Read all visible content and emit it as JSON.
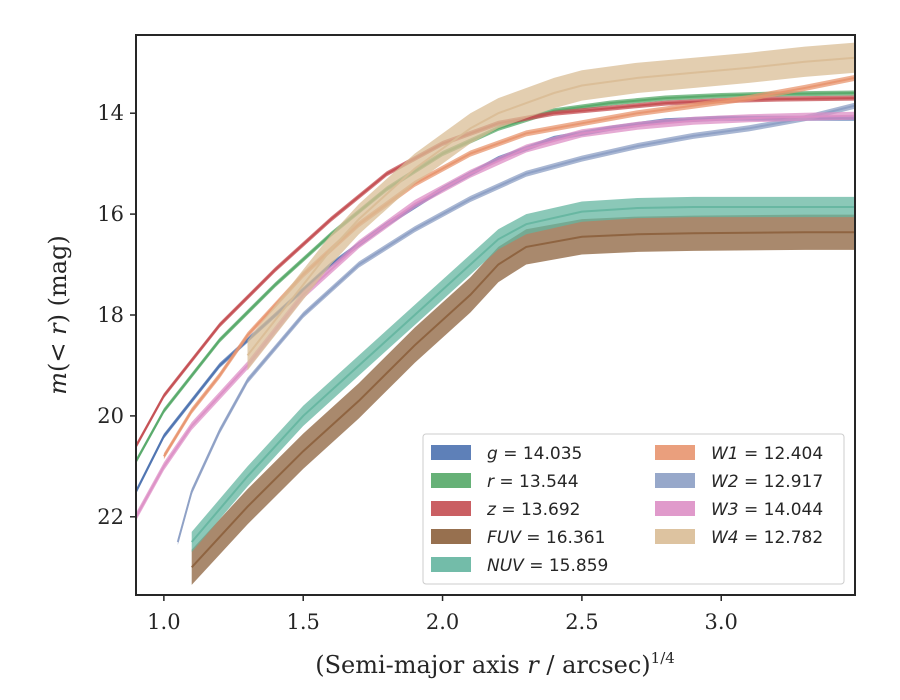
{
  "chart_data": {
    "type": "line",
    "title": "",
    "xlabel": "(Semi-major axis r / arcsec)^{1/4}",
    "xlabel_parts": [
      "(Semi-major axis ",
      "r",
      " / arcsec)",
      "1/4"
    ],
    "ylabel": "m(< r) (mag)",
    "ylabel_parts": [
      "m",
      "(< ",
      "r",
      ") (mag)"
    ],
    "xlim": [
      0.9,
      3.48
    ],
    "ylim": [
      23.55,
      12.45
    ],
    "y_inverted": true,
    "xticks": [
      1.0,
      1.5,
      2.0,
      2.5,
      3.0
    ],
    "xtick_labels": [
      "1.0",
      "1.5",
      "2.0",
      "2.5",
      "3.0"
    ],
    "yticks": [
      14,
      16,
      18,
      20,
      22
    ],
    "ytick_labels": [
      "14",
      "16",
      "18",
      "20",
      "22"
    ],
    "grid": false,
    "legend_position": "lower-right",
    "series": [
      {
        "name": "g",
        "label_value": "14.035",
        "color": "#4c72b0",
        "x": [
          0.9,
          1.0,
          1.2,
          1.4,
          1.6,
          1.8,
          2.0,
          2.2,
          2.4,
          2.6,
          2.8,
          3.0,
          3.2,
          3.48
        ],
        "y": [
          21.5,
          20.4,
          19.0,
          18.0,
          17.0,
          16.2,
          15.5,
          14.9,
          14.5,
          14.3,
          14.15,
          14.1,
          14.1,
          14.1
        ],
        "band": 0.05
      },
      {
        "name": "r",
        "label_value": "13.544",
        "color": "#55a868",
        "x": [
          0.9,
          1.0,
          1.2,
          1.4,
          1.6,
          1.8,
          2.0,
          2.2,
          2.4,
          2.6,
          2.8,
          3.0,
          3.2,
          3.48
        ],
        "y": [
          20.9,
          19.9,
          18.5,
          17.4,
          16.4,
          15.5,
          14.8,
          14.3,
          13.95,
          13.8,
          13.7,
          13.65,
          13.62,
          13.6
        ],
        "band": 0.05
      },
      {
        "name": "z",
        "label_value": "13.692",
        "color": "#c44e52",
        "x": [
          0.9,
          1.0,
          1.2,
          1.4,
          1.6,
          1.8,
          2.0,
          2.2,
          2.4,
          2.6,
          2.8,
          3.0,
          3.2,
          3.48
        ],
        "y": [
          20.6,
          19.6,
          18.2,
          17.1,
          16.1,
          15.2,
          14.6,
          14.2,
          14.0,
          13.9,
          13.8,
          13.75,
          13.72,
          13.7
        ],
        "band": 0.05
      },
      {
        "name": "FUV",
        "label_value": "16.361",
        "color": "#8c613c",
        "x": [
          1.1,
          1.3,
          1.5,
          1.7,
          1.9,
          2.1,
          2.2,
          2.3,
          2.5,
          2.7,
          2.9,
          3.1,
          3.3,
          3.48
        ],
        "y": [
          23.0,
          21.8,
          20.7,
          19.7,
          18.6,
          17.6,
          17.0,
          16.65,
          16.45,
          16.4,
          16.38,
          16.37,
          16.36,
          16.36
        ],
        "band": 0.35
      },
      {
        "name": "NUV",
        "label_value": "15.859",
        "color": "#64b5a0",
        "x": [
          1.1,
          1.3,
          1.5,
          1.7,
          1.9,
          2.1,
          2.2,
          2.3,
          2.5,
          2.7,
          2.9,
          3.1,
          3.3,
          3.48
        ],
        "y": [
          22.5,
          21.2,
          20.0,
          19.0,
          18.0,
          17.0,
          16.5,
          16.2,
          15.95,
          15.88,
          15.86,
          15.86,
          15.86,
          15.86
        ],
        "band": 0.2
      },
      {
        "name": "W1",
        "label_value": "12.404",
        "color": "#e8956f",
        "x": [
          1.0,
          1.1,
          1.2,
          1.3,
          1.5,
          1.7,
          1.9,
          2.1,
          2.3,
          2.5,
          2.7,
          2.9,
          3.1,
          3.3,
          3.48
        ],
        "y": [
          20.8,
          19.9,
          19.2,
          18.4,
          17.2,
          16.2,
          15.4,
          14.8,
          14.4,
          14.2,
          14.0,
          13.85,
          13.7,
          13.5,
          13.3
        ],
        "band": 0.06
      },
      {
        "name": "W2",
        "label_value": "12.917",
        "color": "#8c9fc4",
        "x": [
          1.05,
          1.1,
          1.2,
          1.3,
          1.5,
          1.7,
          1.9,
          2.1,
          2.3,
          2.5,
          2.7,
          2.9,
          3.1,
          3.3,
          3.48
        ],
        "y": [
          22.5,
          21.5,
          20.3,
          19.3,
          18.0,
          17.0,
          16.3,
          15.7,
          15.2,
          14.9,
          14.65,
          14.45,
          14.3,
          14.1,
          13.85
        ],
        "band": 0.06
      },
      {
        "name": "W3",
        "label_value": "14.044",
        "color": "#dd8fc5",
        "x": [
          0.9,
          1.0,
          1.1,
          1.2,
          1.3,
          1.4,
          1.5,
          1.7,
          1.9,
          2.1,
          2.3,
          2.5,
          2.7,
          2.9,
          3.1,
          3.3,
          3.48
        ],
        "y": [
          22.0,
          21.0,
          20.2,
          19.6,
          19.0,
          18.3,
          17.6,
          16.6,
          15.8,
          15.2,
          14.7,
          14.4,
          14.25,
          14.15,
          14.1,
          14.07,
          14.05
        ],
        "band": 0.08
      },
      {
        "name": "W4",
        "label_value": "12.782",
        "color": "#d9bd96",
        "x": [
          1.3,
          1.4,
          1.5,
          1.6,
          1.7,
          1.8,
          1.9,
          2.0,
          2.1,
          2.2,
          2.3,
          2.4,
          2.5,
          2.7,
          2.9,
          3.1,
          3.3,
          3.48
        ],
        "y": [
          18.8,
          18.1,
          17.4,
          16.7,
          16.1,
          15.6,
          15.1,
          14.7,
          14.3,
          14.0,
          13.8,
          13.6,
          13.45,
          13.3,
          13.2,
          13.1,
          12.98,
          12.9
        ],
        "band": 0.3
      }
    ]
  }
}
